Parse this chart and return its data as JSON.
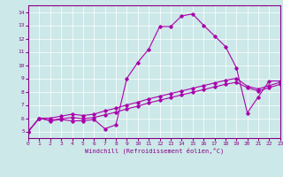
{
  "xlabel": "Windchill (Refroidissement éolien,°C)",
  "bg_color": "#cce8e8",
  "line_color": "#aa00aa",
  "axis_bg": "#cce8e8",
  "xlim": [
    0,
    23
  ],
  "ylim": [
    4.5,
    14.5
  ],
  "xticks": [
    0,
    1,
    2,
    3,
    4,
    5,
    6,
    7,
    8,
    9,
    10,
    11,
    12,
    13,
    14,
    15,
    16,
    17,
    18,
    19,
    20,
    21,
    22,
    23
  ],
  "yticks": [
    5,
    6,
    7,
    8,
    9,
    10,
    11,
    12,
    13,
    14
  ],
  "series1_x": [
    0,
    1,
    2,
    3,
    4,
    5,
    6,
    7,
    8,
    9,
    10,
    11,
    12,
    13,
    14,
    15,
    16,
    17,
    18,
    19,
    20,
    21,
    22,
    23
  ],
  "series1_y": [
    5.0,
    6.0,
    5.8,
    5.9,
    5.8,
    5.8,
    5.9,
    5.2,
    5.5,
    9.0,
    10.2,
    11.2,
    12.9,
    12.9,
    13.7,
    13.85,
    13.0,
    12.2,
    11.4,
    9.8,
    6.4,
    7.6,
    8.8,
    8.8
  ],
  "series2_x": [
    0,
    1,
    2,
    3,
    4,
    5,
    6,
    7,
    8,
    9,
    10,
    11,
    12,
    13,
    14,
    15,
    16,
    17,
    18,
    19,
    20,
    21,
    22,
    23
  ],
  "series2_y": [
    5.0,
    6.0,
    6.0,
    6.15,
    6.3,
    6.2,
    6.3,
    6.55,
    6.75,
    7.0,
    7.2,
    7.45,
    7.65,
    7.85,
    8.05,
    8.25,
    8.45,
    8.65,
    8.85,
    9.0,
    8.4,
    8.2,
    8.45,
    8.7
  ],
  "series3_x": [
    0,
    1,
    2,
    3,
    4,
    5,
    6,
    7,
    8,
    9,
    10,
    11,
    12,
    13,
    14,
    15,
    16,
    17,
    18,
    19,
    20,
    21,
    22,
    23
  ],
  "series3_y": [
    5.0,
    6.0,
    5.85,
    5.95,
    6.05,
    5.95,
    6.05,
    6.25,
    6.45,
    6.7,
    6.9,
    7.15,
    7.35,
    7.55,
    7.75,
    7.95,
    8.15,
    8.35,
    8.55,
    8.7,
    8.3,
    8.05,
    8.3,
    8.55
  ],
  "grid_color": "#ffffff",
  "tick_color": "#880088",
  "spine_color": "#880088"
}
